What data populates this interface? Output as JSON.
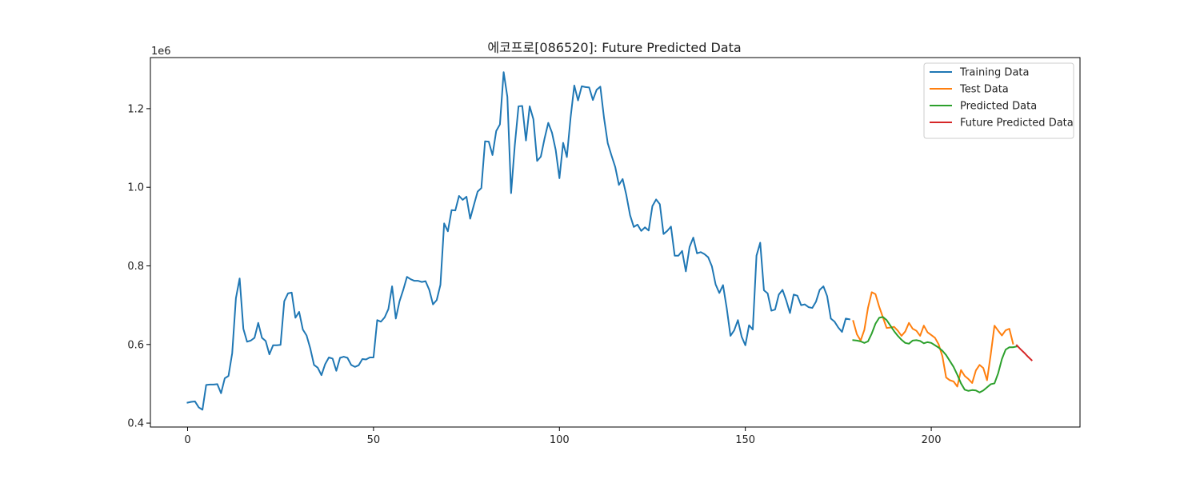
{
  "chart_data": {
    "type": "line",
    "title": "에코프로[086520]: Future Predicted Data",
    "xlabel": "",
    "ylabel": "",
    "y_offset_label": "1e6",
    "xlim": [
      -10,
      240
    ],
    "ylim": [
      390000,
      1330000
    ],
    "x_ticks": [
      0,
      50,
      100,
      150,
      200
    ],
    "x_tick_labels": [
      "0",
      "50",
      "100",
      "150",
      "200"
    ],
    "y_ticks": [
      400000,
      600000,
      800000,
      1000000,
      1200000
    ],
    "y_tick_labels": [
      "0.4",
      "0.6",
      "0.8",
      "1.0",
      "1.2"
    ],
    "grid": false,
    "legend_position": "top-right",
    "series": [
      {
        "name": "Training Data",
        "color": "#1f77b4",
        "x_start": 0,
        "values": [
          452000,
          454000,
          455000,
          440000,
          434000,
          497000,
          498000,
          498000,
          499000,
          476000,
          514000,
          520000,
          578000,
          718000,
          768000,
          640000,
          607000,
          610000,
          617000,
          655000,
          617000,
          609000,
          575000,
          598000,
          598000,
          599000,
          710000,
          730000,
          732000,
          668000,
          683000,
          638000,
          623000,
          590000,
          548000,
          541000,
          522000,
          550000,
          567000,
          564000,
          533000,
          566000,
          569000,
          566000,
          548000,
          543000,
          547000,
          563000,
          562000,
          567000,
          567000,
          662000,
          658000,
          669000,
          690000,
          748000,
          666000,
          710000,
          739000,
          772000,
          766000,
          762000,
          762000,
          759000,
          761000,
          739000,
          702000,
          713000,
          752000,
          908000,
          888000,
          942000,
          941000,
          978000,
          968000,
          976000,
          920000,
          955000,
          989000,
          998000,
          1117000,
          1116000,
          1082000,
          1143000,
          1160000,
          1293000,
          1230000,
          985000,
          1107000,
          1206000,
          1207000,
          1119000,
          1206000,
          1173000,
          1067000,
          1078000,
          1124000,
          1164000,
          1139000,
          1095000,
          1023000,
          1113000,
          1077000,
          1177000,
          1259000,
          1221000,
          1257000,
          1255000,
          1254000,
          1222000,
          1248000,
          1256000,
          1176000,
          1112000,
          1081000,
          1052000,
          1006000,
          1021000,
          980000,
          929000,
          899000,
          905000,
          889000,
          898000,
          890000,
          952000,
          969000,
          957000,
          881000,
          889000,
          900000,
          826000,
          826000,
          838000,
          786000,
          848000,
          872000,
          832000,
          835000,
          830000,
          822000,
          799000,
          753000,
          731000,
          751000,
          692000,
          622000,
          636000,
          662000,
          620000,
          598000,
          649000,
          638000,
          826000,
          859000,
          738000,
          730000,
          686000,
          689000,
          727000,
          739000,
          712000,
          680000,
          727000,
          724000,
          700000,
          702000,
          695000,
          693000,
          709000,
          739000,
          748000,
          723000,
          666000,
          658000,
          643000,
          632000,
          666000,
          664000
        ]
      },
      {
        "name": "Test Data",
        "color": "#ff7f0e",
        "x_start": 179,
        "values": [
          660000,
          626000,
          610000,
          637000,
          694000,
          733000,
          728000,
          696000,
          669000,
          642000,
          643000,
          645000,
          635000,
          622000,
          633000,
          655000,
          640000,
          635000,
          622000,
          648000,
          631000,
          624000,
          617000,
          600000,
          570000,
          516000,
          509000,
          506000,
          493000,
          535000,
          520000,
          512000,
          502000,
          534000,
          548000,
          540000,
          509000,
          575000,
          648000,
          635000,
          623000,
          636000,
          640000,
          602000
        ]
      },
      {
        "name": "Predicted Data",
        "color": "#2ca02c",
        "x_start": 179,
        "values": [
          611000,
          610000,
          608000,
          604000,
          608000,
          628000,
          653000,
          668000,
          670000,
          662000,
          648000,
          634000,
          622000,
          612000,
          604000,
          602000,
          610000,
          611000,
          609000,
          603000,
          606000,
          604000,
          598000,
          592000,
          584000,
          573000,
          558000,
          543000,
          523000,
          501000,
          485000,
          482000,
          484000,
          483000,
          478000,
          483000,
          491000,
          499000,
          501000,
          527000,
          563000,
          587000,
          593000,
          593000,
          595000
        ]
      },
      {
        "name": "Future Predicted Data",
        "color": "#d62728",
        "x_start": 223,
        "values": [
          598000,
          588000,
          579000,
          569000,
          560000
        ]
      }
    ]
  }
}
